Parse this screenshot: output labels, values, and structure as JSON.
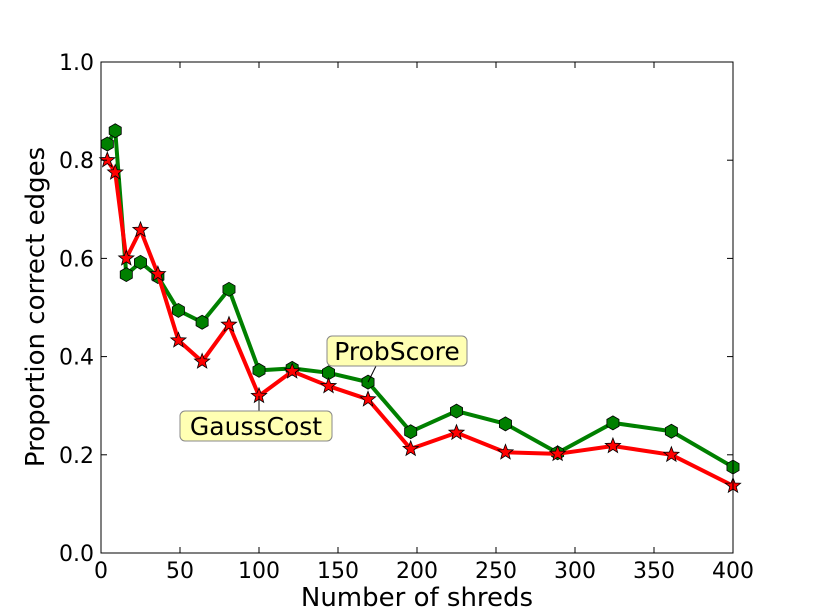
{
  "chart_data": {
    "type": "line",
    "xlabel": "Number of shreds",
    "ylabel": "Proportion correct edges",
    "xlim": [
      0,
      400
    ],
    "ylim": [
      0,
      1.0
    ],
    "xticks": [
      0,
      50,
      100,
      150,
      200,
      250,
      300,
      350,
      400
    ],
    "xtick_labels": [
      "0",
      "50",
      "100",
      "150",
      "200",
      "250",
      "300",
      "350",
      "400"
    ],
    "yticks": [
      0,
      0.2,
      0.4,
      0.6,
      0.8,
      1.0
    ],
    "ytick_labels": [
      "0.0",
      "0.2",
      "0.4",
      "0.6",
      "0.8",
      "1.0"
    ],
    "grid": false,
    "series": [
      {
        "color": "#008000",
        "marker": "hexagon",
        "x": [
          4,
          9,
          16,
          25,
          36,
          49,
          64,
          81,
          100,
          121,
          144,
          169,
          196,
          225,
          256,
          289,
          324,
          361,
          400
        ],
        "values": [
          0.833,
          0.86,
          0.567,
          0.592,
          0.563,
          0.494,
          0.47,
          0.537,
          0.372,
          0.376,
          0.367,
          0.348,
          0.247,
          0.289,
          0.263,
          0.204,
          0.265,
          0.248,
          0.175
        ]
      },
      {
        "color": "#ff0000",
        "marker": "star",
        "x": [
          4,
          9,
          16,
          25,
          36,
          49,
          64,
          81,
          100,
          121,
          144,
          169,
          196,
          225,
          256,
          289,
          324,
          361,
          400
        ],
        "values": [
          0.8,
          0.775,
          0.6,
          0.658,
          0.568,
          0.433,
          0.39,
          0.465,
          0.32,
          0.37,
          0.34,
          0.313,
          0.212,
          0.245,
          0.205,
          0.202,
          0.218,
          0.2,
          0.137
        ]
      }
    ],
    "annotations": [
      {
        "text": "ProbScore",
        "series": 0,
        "point_index": 11
      },
      {
        "text": "GaussCost",
        "series": 1,
        "point_index": 8
      }
    ]
  }
}
